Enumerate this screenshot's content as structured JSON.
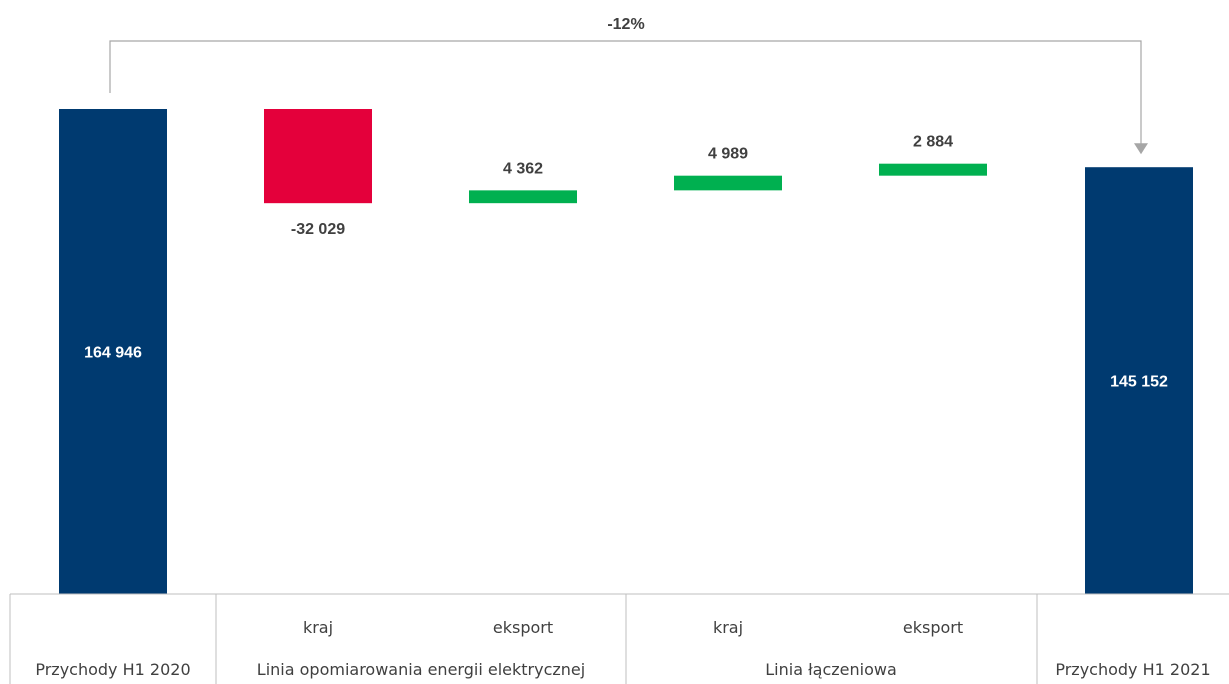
{
  "chart_data": {
    "type": "bar",
    "subtype": "waterfall",
    "title": "",
    "categories": [
      {
        "sub": "",
        "group": "Przychody H1 2020"
      },
      {
        "sub": "kraj",
        "group": "Linia opomiarowania energii elektrycznej"
      },
      {
        "sub": "eksport",
        "group": "Linia opomiarowania energii elektrycznej"
      },
      {
        "sub": "kraj",
        "group": "Linia łączeniowa"
      },
      {
        "sub": "eksport",
        "group": "Linia łączeniowa"
      },
      {
        "sub": "",
        "group": "Przychody H1 2021"
      }
    ],
    "groups": [
      "Przychody H1 2020",
      "Linia opomiarowania energii elektrycznej",
      "Linia łączeniowa",
      "Przychody H1 2021"
    ],
    "bars": [
      {
        "kind": "total",
        "value": 164946,
        "label": "164 946"
      },
      {
        "kind": "delta",
        "value": -32029,
        "label": "-32 029"
      },
      {
        "kind": "delta",
        "value": 4362,
        "label": "4 362"
      },
      {
        "kind": "delta",
        "value": 4989,
        "label": "4 989"
      },
      {
        "kind": "delta",
        "value": 2884,
        "label": "2 884"
      },
      {
        "kind": "total",
        "value": 145152,
        "label": "145 152"
      }
    ],
    "annotation": {
      "text": "-12%",
      "from": 0,
      "to": 5
    },
    "colors": {
      "total": "#003A70",
      "decrease": "#E4003B",
      "increase": "#00B050",
      "arrow": "#A6A6A6",
      "label_on_dark": "#FFFFFF",
      "label": "#404040",
      "grid": "#BFBFBF"
    },
    "xlabel": "",
    "ylabel": "",
    "legend": "none",
    "grid": false
  }
}
